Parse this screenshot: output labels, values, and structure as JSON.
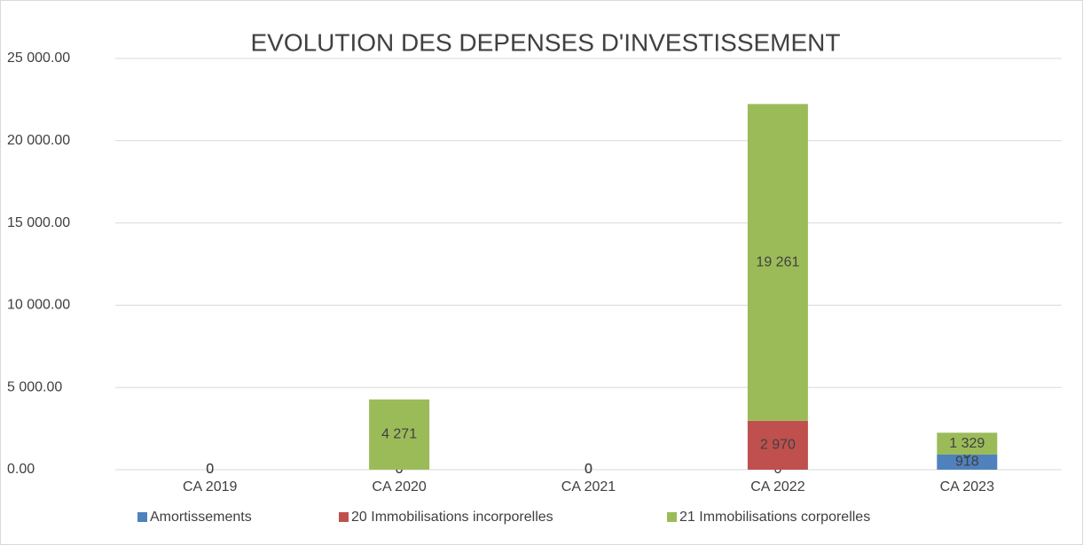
{
  "chart_data": {
    "type": "stacked_bar",
    "title": "EVOLUTION DES DEPENSES D'INVESTISSEMENT",
    "categories": [
      "CA 2019",
      "CA 2020",
      "CA 2021",
      "CA 2022",
      "CA 2023"
    ],
    "series": [
      {
        "name": "Amortissements",
        "color": "#4f81bd",
        "values": [
          0,
          0,
          0,
          0,
          918
        ],
        "value_labels": [
          "0",
          "0",
          "0",
          "0",
          "918"
        ]
      },
      {
        "name": "20 Immobilisations incorporelles",
        "color": "#c0504d",
        "values": [
          0,
          0,
          0,
          2970,
          0
        ],
        "value_labels": [
          "0",
          "0",
          "0",
          "2 970",
          "0"
        ]
      },
      {
        "name": "21 Immobilisations corporelles",
        "color": "#9bbb59",
        "values": [
          0,
          4271,
          0,
          19261,
          1329
        ],
        "value_labels": [
          "0",
          "4 271",
          "0",
          "19 261",
          "1 329"
        ]
      }
    ],
    "ylim": [
      0,
      25000
    ],
    "yticks": [
      {
        "value": 0,
        "label": "0.00"
      },
      {
        "value": 5000,
        "label": "5 000.00"
      },
      {
        "value": 10000,
        "label": "10 000.00"
      },
      {
        "value": 15000,
        "label": "15 000.00"
      },
      {
        "value": 20000,
        "label": "20 000.00"
      },
      {
        "value": 25000,
        "label": "25 000.00"
      }
    ],
    "grid": true,
    "legend": "bottom"
  }
}
